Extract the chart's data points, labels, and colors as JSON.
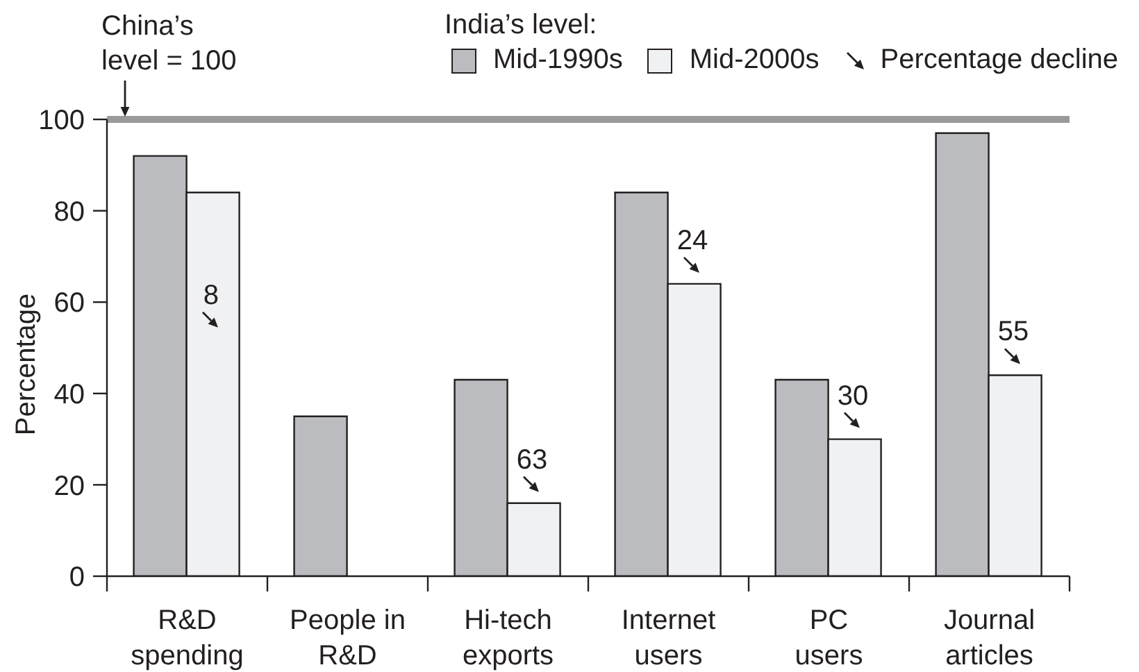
{
  "chart_data": {
    "type": "bar",
    "ylabel": "Percentage",
    "legend_title": "India’s level:",
    "categories": [
      "R&D\nspending",
      "People in\nR&D",
      "Hi-tech\nexports",
      "Internet\nusers",
      "PC\nusers",
      "Journal\narticles"
    ],
    "series": [
      {
        "name": "Mid-1990s",
        "color": "#bbbcc0",
        "values": [
          92,
          35,
          43,
          84,
          43,
          97
        ]
      },
      {
        "name": "Mid-2000s",
        "color": "#f0f1f2",
        "values": [
          84,
          null,
          16,
          64,
          30,
          44
        ]
      }
    ],
    "ylim": [
      0,
      100
    ],
    "yticks": [
      0,
      20,
      40,
      60,
      80,
      100
    ],
    "legend": "top",
    "ref_lines": [
      {
        "axis": "y",
        "value": 100,
        "label": "China’s\nlevel = 100",
        "color": "#9a9a9a"
      }
    ],
    "annotations": [
      "Percentage decline",
      {
        "text": "8",
        "x": "R&D\nspending",
        "y": 52
      },
      {
        "text": "63",
        "x": "Hi-tech\nexports",
        "y": 16
      },
      {
        "text": "24",
        "x": "Internet\nusers",
        "y": 64
      },
      {
        "text": "30",
        "x": "PC\nusers",
        "y": 30
      },
      {
        "text": "55",
        "x": "Journal\narticles",
        "y": 44
      }
    ]
  }
}
